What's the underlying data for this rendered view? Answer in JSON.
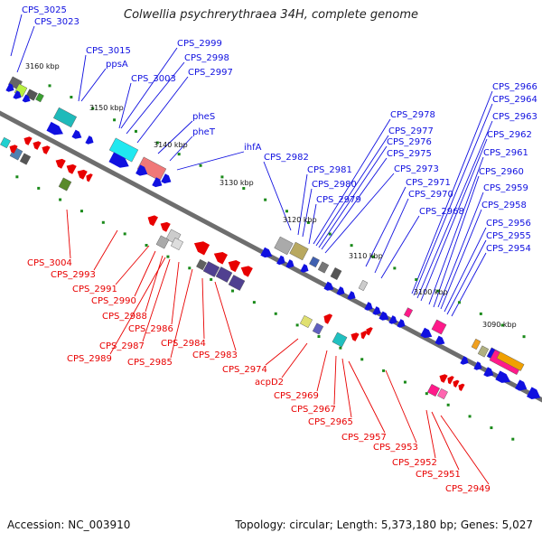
{
  "title": "Colwellia psychrerythraea 34H, complete genome",
  "footer": {
    "accession": "Accession: NC_003910",
    "summary": "Topology: circular; Length: 5,373,180 bp; Genes: 5,027"
  },
  "colors": {
    "forward": "#1010e0",
    "reverse": "#e80000",
    "axis": "#7a7a7a",
    "scale_dot": "#1a8a1a"
  },
  "scale_labels": [
    "3160 kbp",
    "3150 kbp",
    "3140 kbp",
    "3130 kbp",
    "3120 kbp",
    "3110 kbp",
    "3100 kbp",
    "3090 kbp"
  ],
  "top_labels": [
    "CPS_3025",
    "CPS_3023",
    "CPS_3015",
    "ppsA",
    "CPS_2999",
    "CPS_2998",
    "CPS_3003",
    "CPS_2997",
    "pheS",
    "pheT",
    "ihfA",
    "CPS_2982",
    "CPS_2981",
    "CPS_2980",
    "CPS_2979",
    "CPS_2978",
    "CPS_2977",
    "CPS_2976",
    "CPS_2975",
    "CPS_2973",
    "CPS_2971",
    "CPS_2970",
    "CPS_2968",
    "CPS_2966",
    "CPS_2964",
    "CPS_2963",
    "CPS_2962",
    "CPS_2961",
    "CPS_2960",
    "CPS_2959",
    "CPS_2958",
    "CPS_2956",
    "CPS_2955",
    "CPS_2954"
  ],
  "bottom_labels": [
    "CPS_3004",
    "CPS_2993",
    "CPS_2991",
    "CPS_2990",
    "CPS_2988",
    "CPS_2986",
    "CPS_2987",
    "CPS_2989",
    "CPS_2985",
    "CPS_2984",
    "CPS_2983",
    "CPS_2974",
    "acpD2",
    "CPS_2969",
    "CPS_2967",
    "CPS_2965",
    "CPS_2957",
    "CPS_2953",
    "CPS_2952",
    "CPS_2951",
    "CPS_2949"
  ]
}
